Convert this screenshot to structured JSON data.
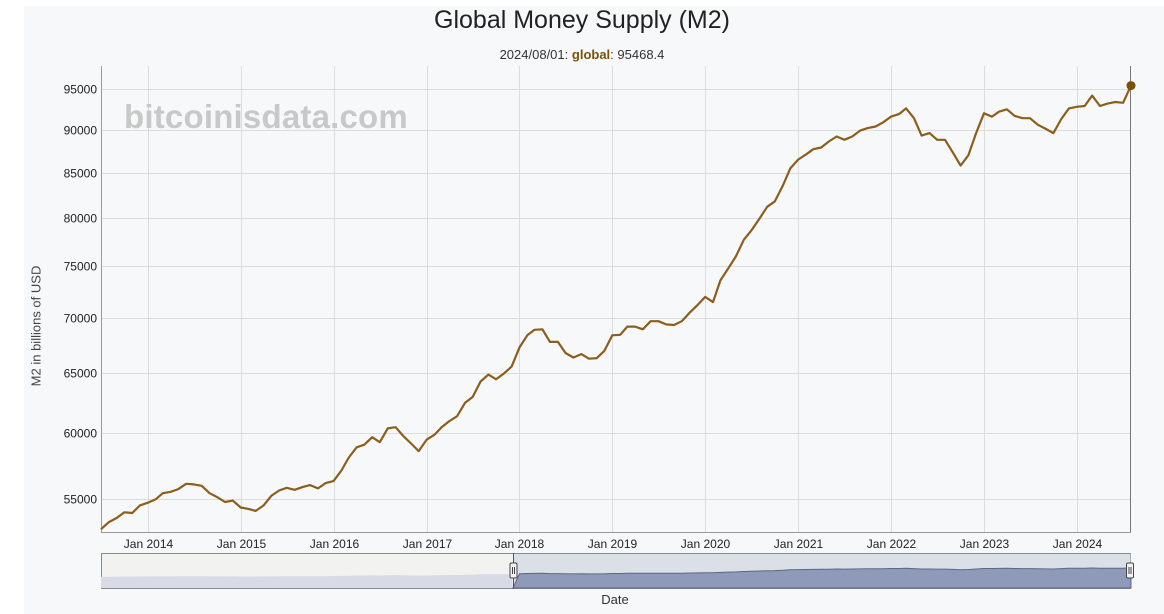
{
  "page": {
    "title": "Global Money Supply (M2)",
    "legend": {
      "date": "2024/08/01",
      "series": "global",
      "value": "95468.4"
    },
    "watermark": "bitcoinisdata.com",
    "navigator_xlabel": "Date"
  },
  "chart_data": {
    "type": "line",
    "title": "Global Money Supply (M2)",
    "xlabel": "",
    "ylabel": "M2 in billions of USD",
    "y_scale": "log",
    "grid": true,
    "line_color": "#8b5e1c",
    "x_ticks": [
      "Jan 2014",
      "Jan 2015",
      "Jan 2016",
      "Jan 2017",
      "Jan 2018",
      "Jan 2019",
      "Jan 2020",
      "Jan 2021",
      "Jan 2022",
      "Jan 2023",
      "Jan 2024"
    ],
    "y_ticks": [
      55000,
      60000,
      65000,
      70000,
      75000,
      80000,
      85000,
      90000,
      95000
    ],
    "xlim": [
      "2013-07-01",
      "2024-08-01"
    ],
    "ylim": [
      52600,
      98000
    ],
    "series": [
      {
        "name": "global",
        "x": [
          "2013-07-01",
          "2013-08-01",
          "2013-09-01",
          "2013-10-01",
          "2013-11-01",
          "2013-12-01",
          "2014-01-01",
          "2014-02-01",
          "2014-03-01",
          "2014-04-01",
          "2014-05-01",
          "2014-06-01",
          "2014-07-01",
          "2014-08-01",
          "2014-09-01",
          "2014-10-01",
          "2014-11-01",
          "2014-12-01",
          "2015-01-01",
          "2015-02-01",
          "2015-03-01",
          "2015-04-01",
          "2015-05-01",
          "2015-06-01",
          "2015-07-01",
          "2015-08-01",
          "2015-09-01",
          "2015-10-01",
          "2015-11-01",
          "2015-12-01",
          "2016-01-01",
          "2016-02-01",
          "2016-03-01",
          "2016-04-01",
          "2016-05-01",
          "2016-06-01",
          "2016-07-01",
          "2016-08-01",
          "2016-09-01",
          "2016-10-01",
          "2016-11-01",
          "2016-12-01",
          "2017-01-01",
          "2017-02-01",
          "2017-03-01",
          "2017-04-01",
          "2017-05-01",
          "2017-06-01",
          "2017-07-01",
          "2017-08-01",
          "2017-09-01",
          "2017-10-01",
          "2017-11-01",
          "2017-12-01",
          "2018-01-01",
          "2018-02-01",
          "2018-03-01",
          "2018-04-01",
          "2018-05-01",
          "2018-06-01",
          "2018-07-01",
          "2018-08-01",
          "2018-09-01",
          "2018-10-01",
          "2018-11-01",
          "2018-12-01",
          "2019-01-01",
          "2019-02-01",
          "2019-03-01",
          "2019-04-01",
          "2019-05-01",
          "2019-06-01",
          "2019-07-01",
          "2019-08-01",
          "2019-09-01",
          "2019-10-01",
          "2019-11-01",
          "2019-12-01",
          "2020-01-01",
          "2020-02-01",
          "2020-03-01",
          "2020-04-01",
          "2020-05-01",
          "2020-06-01",
          "2020-07-01",
          "2020-08-01",
          "2020-09-01",
          "2020-10-01",
          "2020-11-01",
          "2020-12-01",
          "2021-01-01",
          "2021-02-01",
          "2021-03-01",
          "2021-04-01",
          "2021-05-01",
          "2021-06-01",
          "2021-07-01",
          "2021-08-01",
          "2021-09-01",
          "2021-10-01",
          "2021-11-01",
          "2021-12-01",
          "2022-01-01",
          "2022-02-01",
          "2022-03-01",
          "2022-04-01",
          "2022-05-01",
          "2022-06-01",
          "2022-07-01",
          "2022-08-01",
          "2022-09-01",
          "2022-10-01",
          "2022-11-01",
          "2022-12-01",
          "2023-01-01",
          "2023-02-01",
          "2023-03-01",
          "2023-04-01",
          "2023-05-01",
          "2023-06-01",
          "2023-07-01",
          "2023-08-01",
          "2023-09-01",
          "2023-10-01",
          "2023-11-01",
          "2023-12-01",
          "2024-01-01",
          "2024-02-01",
          "2024-03-01",
          "2024-04-01",
          "2024-05-01",
          "2024-06-01",
          "2024-07-01",
          "2024-08-01"
        ],
        "y": [
          52800,
          53300,
          53600,
          54000,
          53950,
          54500,
          54700,
          54950,
          55400,
          55500,
          55700,
          56100,
          56050,
          55950,
          55400,
          55100,
          54750,
          54850,
          54350,
          54250,
          54100,
          54500,
          55200,
          55600,
          55800,
          55650,
          55850,
          56000,
          55750,
          56150,
          56300,
          57100,
          58100,
          58900,
          59100,
          59700,
          59300,
          60400,
          60500,
          59800,
          59200,
          58600,
          59500,
          59900,
          60500,
          61000,
          61400,
          62500,
          63000,
          64300,
          64900,
          64500,
          65000,
          65600,
          67300,
          68400,
          68900,
          68950,
          67800,
          67800,
          66800,
          66400,
          66700,
          66300,
          66350,
          67000,
          68400,
          68450,
          69200,
          69200,
          68950,
          69700,
          69700,
          69400,
          69350,
          69700,
          70500,
          71200,
          72000,
          71500,
          73600,
          74800,
          76000,
          77700,
          78700,
          79900,
          81200,
          81800,
          83500,
          85500,
          86500,
          87100,
          87700,
          87900,
          88600,
          89200,
          88800,
          89200,
          89900,
          90200,
          90400,
          90900,
          91600,
          91900,
          92600,
          91400,
          89300,
          89600,
          88800,
          88800,
          87300,
          85800,
          87000,
          89600,
          92000,
          91600,
          92200,
          92500,
          91700,
          91400,
          91400,
          90600,
          90100,
          89600,
          91300,
          92600,
          92800,
          92900,
          94200,
          92900,
          93200,
          93400,
          93300,
          95468.4
        ]
      }
    ],
    "navigator": {
      "xlabel": "Date",
      "selected_range_fraction": [
        0.4,
        1.0
      ]
    }
  }
}
